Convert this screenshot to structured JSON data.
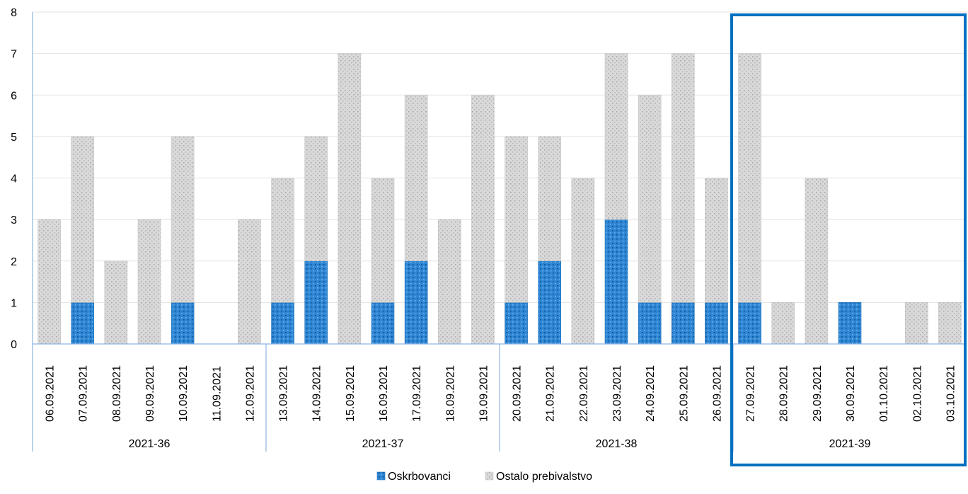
{
  "chart_data": {
    "type": "bar",
    "stacked": true,
    "categories": [
      "06.09.2021",
      "07.09.2021",
      "08.09.2021",
      "09.09.2021",
      "10.09.2021",
      "11.09.2021",
      "12.09.2021",
      "13.09.2021",
      "14.09.2021",
      "15.09.2021",
      "16.09.2021",
      "17.09.2021",
      "18.09.2021",
      "19.09.2021",
      "20.09.2021",
      "21.09.2021",
      "22.09.2021",
      "23.09.2021",
      "24.09.2021",
      "25.09.2021",
      "26.09.2021",
      "27.09.2021",
      "28.09.2021",
      "29.09.2021",
      "30.09.2021",
      "01.10.2021",
      "02.10.2021",
      "03.10.2021"
    ],
    "groups": [
      {
        "label": "2021-36",
        "count": 7
      },
      {
        "label": "2021-37",
        "count": 7
      },
      {
        "label": "2021-38",
        "count": 7
      },
      {
        "label": "2021-39",
        "count": 7
      }
    ],
    "series": [
      {
        "name": "Oskrbovanci",
        "color": "#2e86d4",
        "values": [
          0,
          1,
          0,
          0,
          1,
          0,
          0,
          1,
          2,
          0,
          1,
          2,
          0,
          0,
          1,
          2,
          0,
          3,
          1,
          1,
          1,
          1,
          0,
          0,
          1,
          0,
          0,
          0
        ]
      },
      {
        "name": "Ostalo prebivalstvo",
        "color": "#d9d9d9",
        "values": [
          3,
          4,
          2,
          3,
          4,
          0,
          3,
          3,
          3,
          7,
          3,
          4,
          3,
          6,
          4,
          3,
          4,
          4,
          5,
          6,
          3,
          6,
          1,
          4,
          0,
          0,
          1,
          1
        ]
      }
    ],
    "y_ticks": [
      0,
      1,
      2,
      3,
      4,
      5,
      6,
      7,
      8
    ],
    "ylim": [
      0,
      8
    ],
    "grid": true,
    "legend_position": "bottom",
    "highlighted_group": "2021-39",
    "highlight_color": "#0070c0"
  }
}
